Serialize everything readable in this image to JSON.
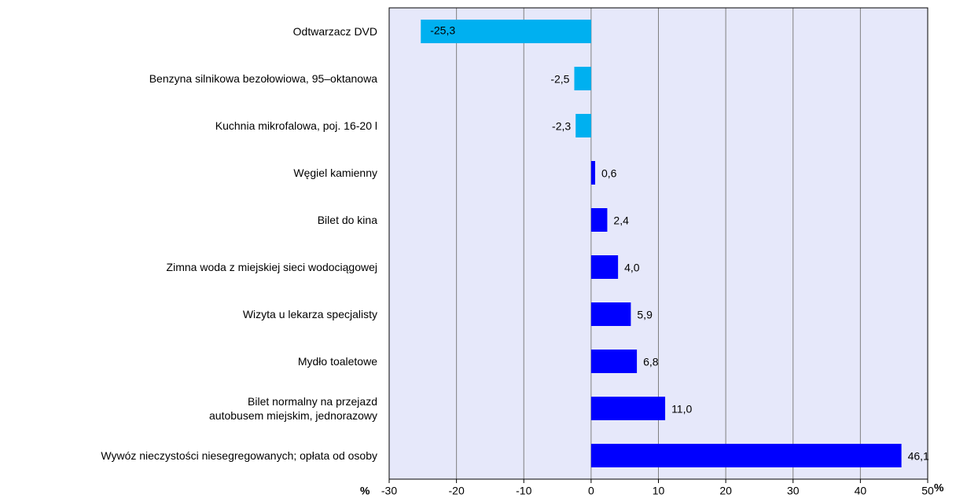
{
  "chart_data": {
    "type": "barh",
    "categories": [
      "Odtwarzacz DVD",
      "Benzyna silnikowa bezołowiowa, 95–oktanowa",
      "Kuchnia mikrofalowa, poj. 16-20 l",
      "Węgiel kamienny",
      "Bilet do kina",
      "Zimna woda z miejskiej sieci wodociągowej",
      "Wizyta u lekarza specjalisty",
      "Mydło toaletowe",
      "Bilet normalny na przejazd\nautobusem  miejskim,  jednorazowy",
      "Wywóz nieczystości niesegregowanych; opłata od osoby"
    ],
    "values": [
      -25.3,
      -2.5,
      -2.3,
      0.6,
      2.4,
      4.0,
      5.9,
      6.8,
      11.0,
      46.1
    ],
    "value_labels": [
      "-25,3",
      "-2,5",
      "-2,3",
      "0,6",
      "2,4",
      "4,0",
      "5,9",
      "6,8",
      "11,0",
      "46,1"
    ],
    "colors": [
      "#00b0f0",
      "#00b0f0",
      "#00b0f0",
      "#0000ff",
      "#0000ff",
      "#0000ff",
      "#0000ff",
      "#0000ff",
      "#0000ff",
      "#0000ff"
    ],
    "xlim": [
      -30,
      50
    ],
    "xticks": [
      -30,
      -20,
      -10,
      0,
      10,
      20,
      30,
      40,
      50
    ],
    "xlabels": [
      "%",
      "%"
    ],
    "grid": true
  }
}
